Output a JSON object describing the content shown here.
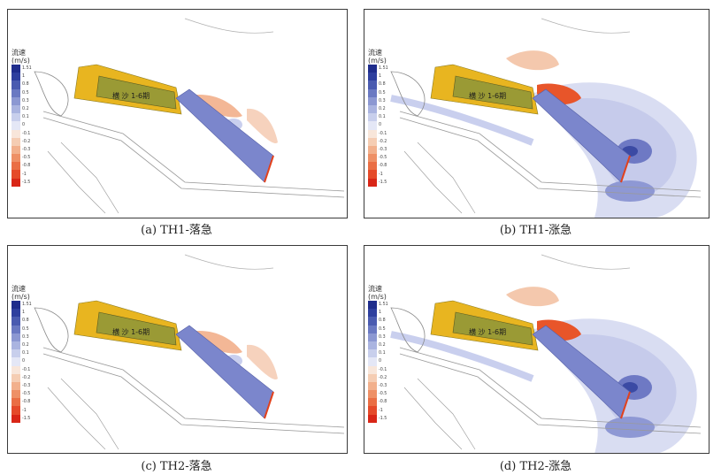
{
  "panels": [
    {
      "id": "a",
      "caption": "(a)  TH1-落急",
      "variant": "ebb"
    },
    {
      "id": "b",
      "caption": "(b)  TH1-涨急",
      "variant": "flood"
    },
    {
      "id": "c",
      "caption": "(c)  TH2-落急",
      "variant": "ebb"
    },
    {
      "id": "d",
      "caption": "(d)  TH2-涨急",
      "variant": "flood"
    }
  ],
  "legend": {
    "title_line1": "流速",
    "title_line2": "(m/s)",
    "entries": [
      {
        "label": "1.51",
        "color": "#1f2d8c"
      },
      {
        "label": "1",
        "color": "#2e3f9e"
      },
      {
        "label": "0.8",
        "color": "#4a5bb0"
      },
      {
        "label": "0.5",
        "color": "#6a79c2"
      },
      {
        "label": "0.3",
        "color": "#8c98d2"
      },
      {
        "label": "0.2",
        "color": "#aab4e0"
      },
      {
        "label": "0.1",
        "color": "#c8cfec"
      },
      {
        "label": "0",
        "color": "#e4e7f6"
      },
      {
        "label": "-0.1",
        "color": "#f8e6da"
      },
      {
        "label": "-0.2",
        "color": "#f5cdb3"
      },
      {
        "label": "-0.3",
        "color": "#f2b08c"
      },
      {
        "label": "-0.5",
        "color": "#ee9066"
      },
      {
        "label": "-0.8",
        "color": "#ea6e44"
      },
      {
        "label": "-1",
        "color": "#e54a2a"
      },
      {
        "label": "-1.5",
        "color": "#d92617"
      }
    ]
  },
  "area_label": "横 沙 1-6期",
  "colors": {
    "frame": "#3a3a3a",
    "blue": "#7b86cc",
    "yellow": "#e8b520",
    "olive": "#9a9a35",
    "red": "#e2421c"
  }
}
